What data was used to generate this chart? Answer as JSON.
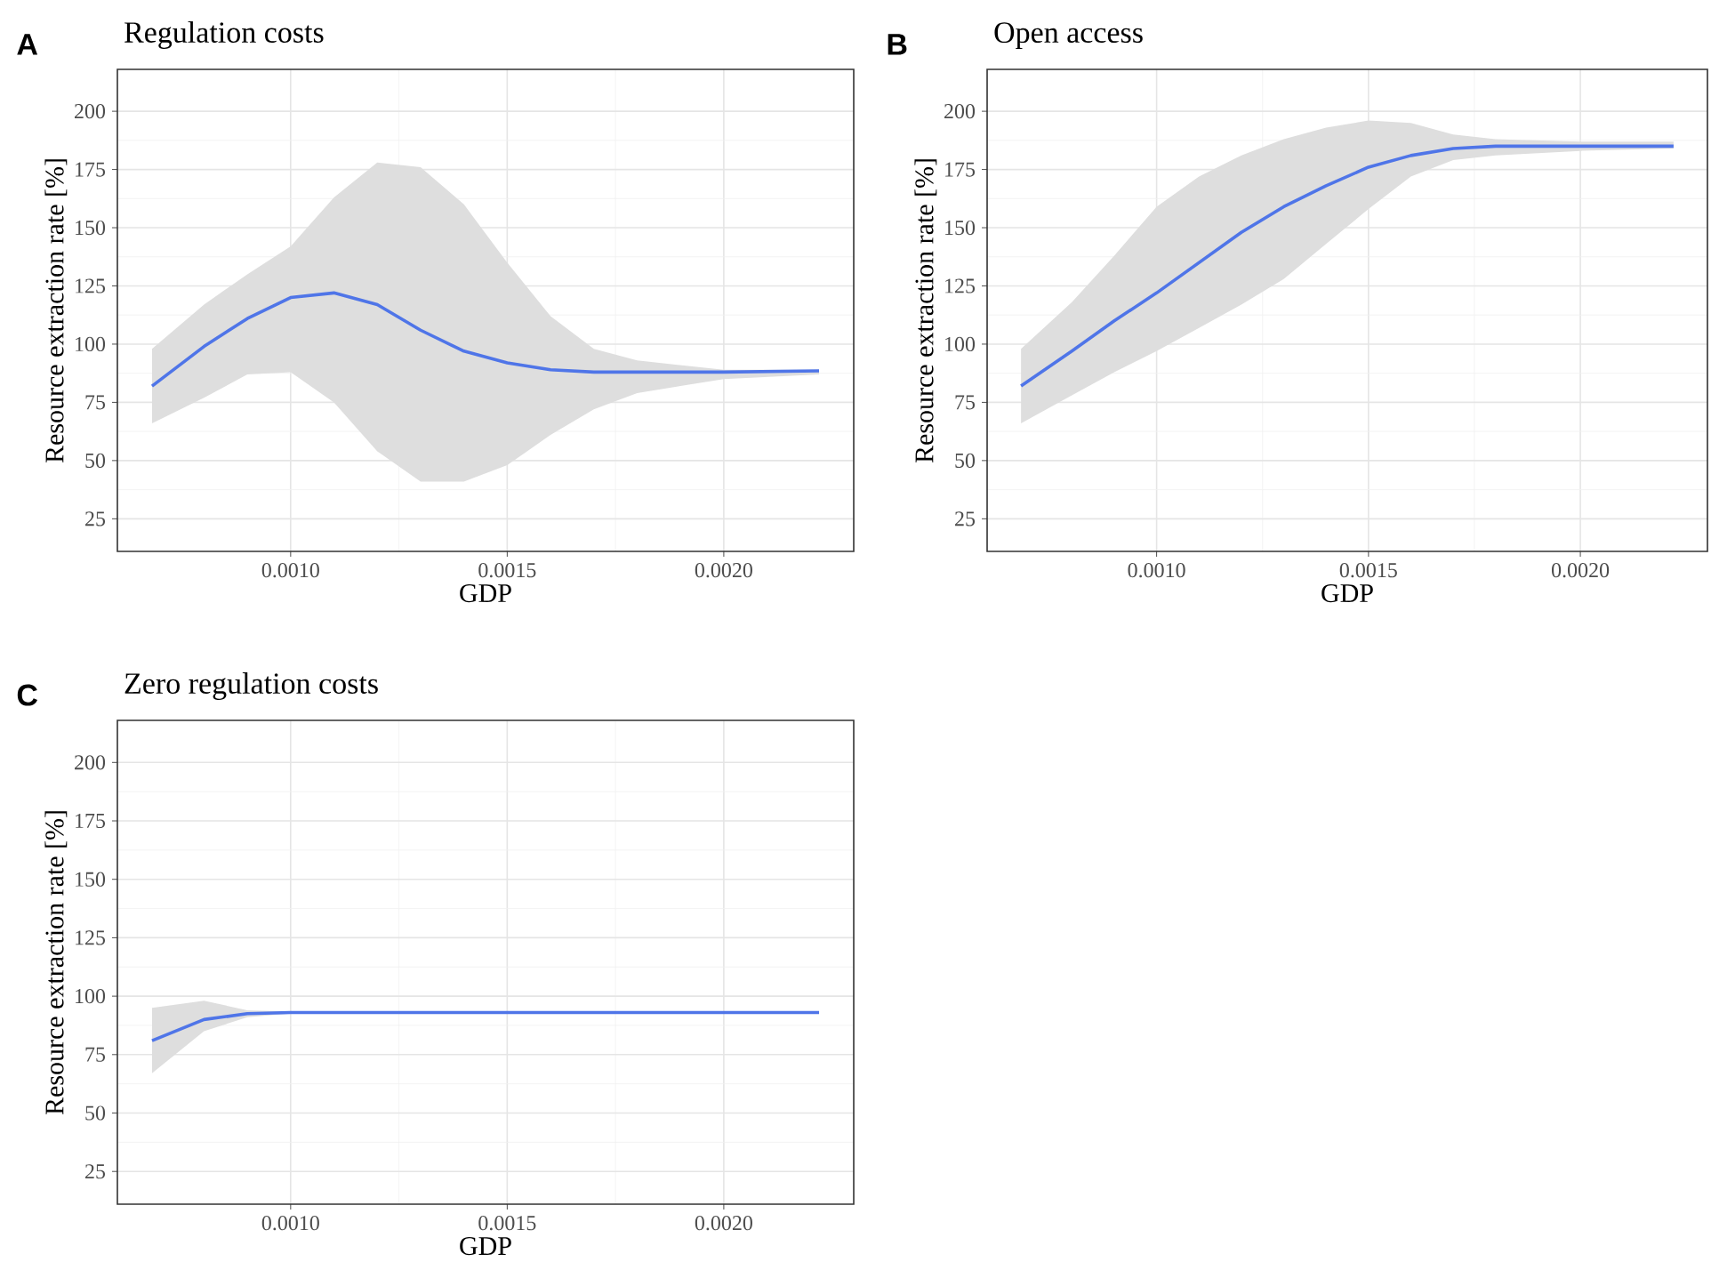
{
  "chart_data": [
    {
      "type": "line",
      "title": "Regulation costs",
      "annotations": [
        "A"
      ],
      "xlabel": "GDP",
      "ylabel": "Resource extraction rate [%]",
      "xlim": [
        0.0006,
        0.0023
      ],
      "ylim": [
        11,
        218
      ],
      "xticks": [
        {
          "value": 0.001,
          "label": "0.0010"
        },
        {
          "value": 0.0015,
          "label": "0.0015"
        },
        {
          "value": 0.002,
          "label": "0.0020"
        }
      ],
      "yticks": [
        25,
        50,
        75,
        100,
        125,
        150,
        175,
        200
      ],
      "grid": true,
      "series": [
        {
          "color": "#4f75e8",
          "x": [
            0.00068,
            0.0008,
            0.0009,
            0.001,
            0.0011,
            0.0012,
            0.0013,
            0.0014,
            0.0015,
            0.0016,
            0.0017,
            0.0018,
            0.002,
            0.00222
          ],
          "values": [
            82,
            99,
            111,
            120,
            122,
            117,
            106,
            97,
            92,
            89,
            88,
            88,
            88,
            88.5
          ],
          "upper": [
            98,
            117,
            130,
            142,
            163,
            178,
            176,
            160,
            135,
            112,
            98,
            93,
            89,
            89
          ],
          "lower": [
            66,
            77,
            87,
            88,
            75,
            54,
            41,
            41,
            48,
            61,
            72,
            79,
            85,
            87
          ]
        }
      ]
    },
    {
      "type": "line",
      "title": "Open access",
      "annotations": [
        "B"
      ],
      "xlabel": "GDP",
      "ylabel": "Resource extraction rate [%]",
      "xlim": [
        0.0006,
        0.0023
      ],
      "ylim": [
        11,
        218
      ],
      "xticks": [
        {
          "value": 0.001,
          "label": "0.0010"
        },
        {
          "value": 0.0015,
          "label": "0.0015"
        },
        {
          "value": 0.002,
          "label": "0.0020"
        }
      ],
      "yticks": [
        25,
        50,
        75,
        100,
        125,
        150,
        175,
        200
      ],
      "grid": true,
      "series": [
        {
          "color": "#4f75e8",
          "x": [
            0.00068,
            0.0008,
            0.0009,
            0.001,
            0.0011,
            0.0012,
            0.0013,
            0.0014,
            0.0015,
            0.0016,
            0.0017,
            0.0018,
            0.002,
            0.00222
          ],
          "values": [
            82,
            97,
            110,
            122,
            135,
            148,
            159,
            168,
            176,
            181,
            184,
            185,
            185,
            185
          ],
          "upper": [
            98,
            118,
            138,
            159,
            172,
            181,
            188,
            193,
            196,
            195,
            190,
            188,
            187,
            187
          ],
          "lower": [
            66,
            78,
            88,
            97,
            107,
            117,
            128,
            143,
            158,
            172,
            179,
            181,
            183,
            184
          ]
        }
      ]
    },
    {
      "type": "line",
      "title": "Zero regulation costs",
      "annotations": [
        "C"
      ],
      "xlabel": "GDP",
      "ylabel": "Resource extraction rate [%]",
      "xlim": [
        0.0006,
        0.0023
      ],
      "ylim": [
        11,
        218
      ],
      "xticks": [
        {
          "value": 0.001,
          "label": "0.0010"
        },
        {
          "value": 0.0015,
          "label": "0.0015"
        },
        {
          "value": 0.002,
          "label": "0.0020"
        }
      ],
      "yticks": [
        25,
        50,
        75,
        100,
        125,
        150,
        175,
        200
      ],
      "grid": true,
      "series": [
        {
          "color": "#4f75e8",
          "x": [
            0.00068,
            0.0008,
            0.0009,
            0.001,
            0.0012,
            0.0015,
            0.0018,
            0.002,
            0.00222
          ],
          "values": [
            81,
            90,
            92.5,
            93,
            93,
            93,
            93,
            93,
            93
          ],
          "upper": [
            95,
            98,
            94,
            93.5,
            93.5,
            93.5,
            93.5,
            93.5,
            93.5
          ],
          "lower": [
            67,
            85,
            91,
            92.5,
            92.5,
            92.5,
            92.5,
            92.5,
            92.5
          ]
        }
      ]
    }
  ]
}
